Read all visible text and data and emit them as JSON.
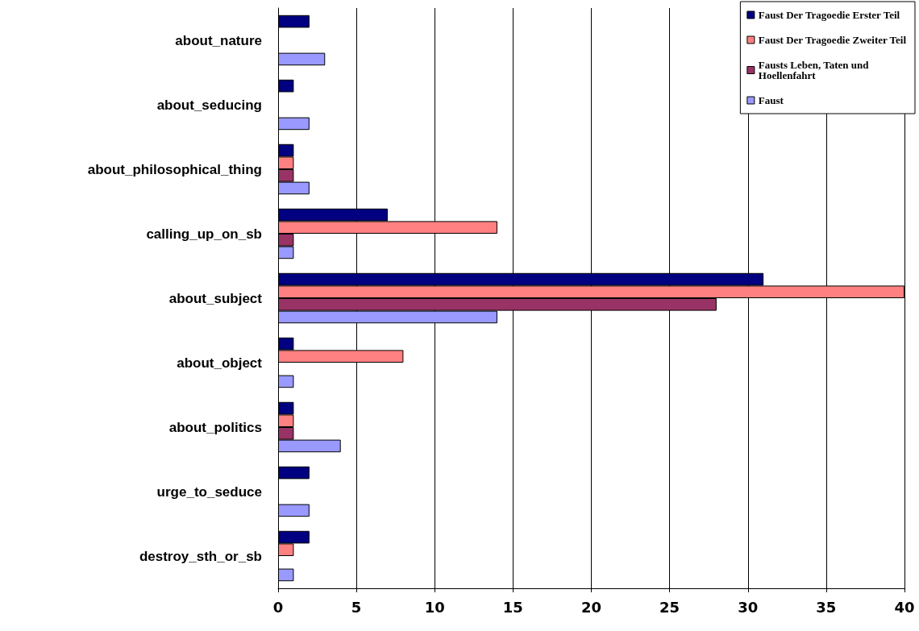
{
  "chart_data": {
    "type": "bar",
    "orientation": "horizontal",
    "categories": [
      "about_nature",
      "about_seducing",
      "about_philosophical_thing",
      "calling_up_on_sb",
      "about_subject",
      "about_object",
      "about_politics",
      "urge_to_seduce",
      "destroy_sth_or_sb"
    ],
    "series": [
      {
        "name": "Faust Der Tragoedie Erster Teil",
        "color": "#000080",
        "values": [
          2,
          1,
          1,
          7,
          31,
          1,
          1,
          2,
          2
        ]
      },
      {
        "name": "Faust Der Tragoedie Zweiter Teil",
        "color": "#ff8080",
        "values": [
          null,
          null,
          1,
          14,
          40,
          8,
          1,
          null,
          1
        ]
      },
      {
        "name": "Fausts Leben, Taten und Hoellenfahrt",
        "color": "#993366",
        "values": [
          null,
          null,
          1,
          1,
          28,
          null,
          1,
          null,
          null
        ]
      },
      {
        "name": "Faust",
        "color": "#9999ff",
        "values": [
          3,
          2,
          2,
          1,
          14,
          1,
          4,
          2,
          1
        ]
      }
    ],
    "xlim": [
      0,
      40
    ],
    "xticks": [
      0,
      5,
      10,
      15,
      20,
      25,
      30,
      35,
      40
    ],
    "grid": "x",
    "legend": "top right"
  }
}
